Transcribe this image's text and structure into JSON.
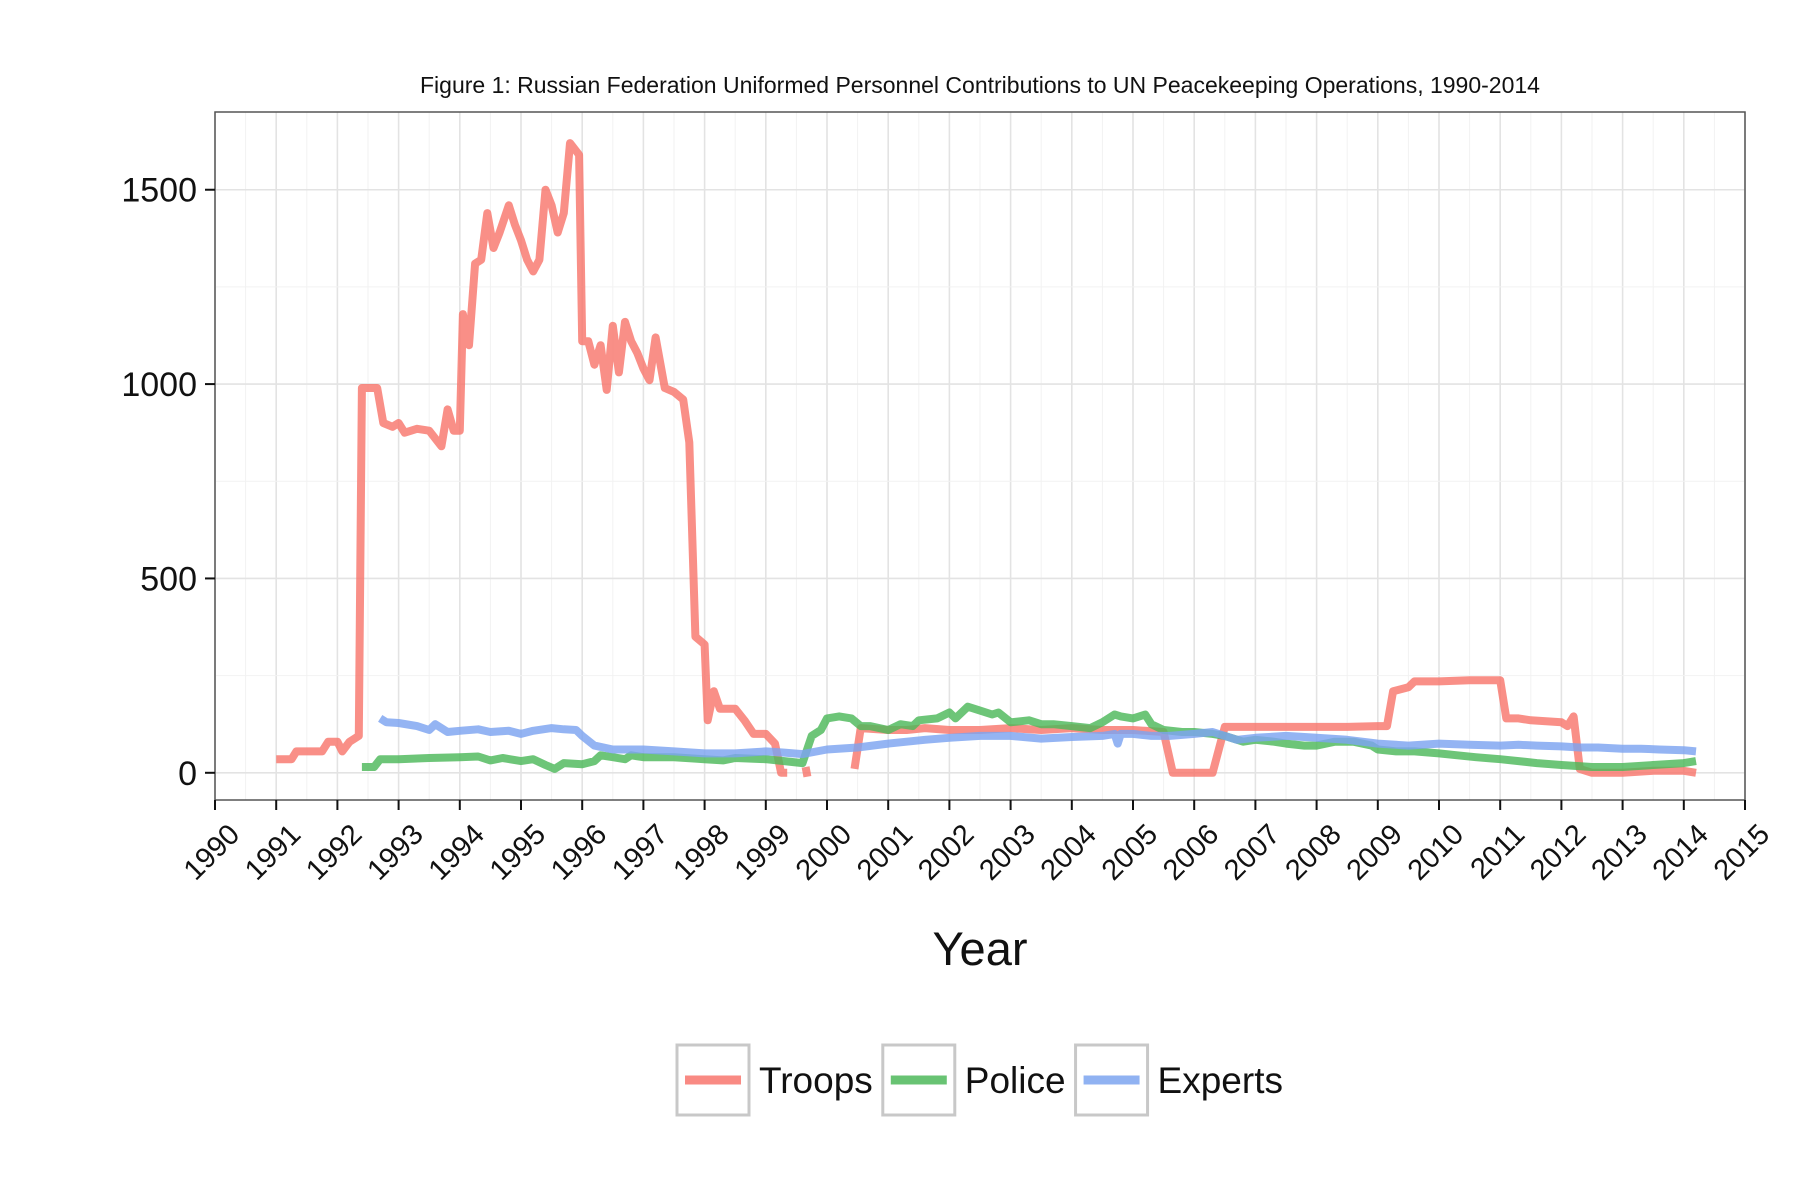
{
  "chart_data": {
    "type": "line",
    "title": "Figure 1: Russian Federation Uniformed Personnel Contributions to UN Peacekeeping Operations, 1990-2014",
    "xlabel": "Year",
    "ylabel": "",
    "xlim": [
      1990,
      2015
    ],
    "ylim": [
      -70,
      1700
    ],
    "x_ticks": [
      "1990",
      "1991",
      "1992",
      "1993",
      "1994",
      "1995",
      "1996",
      "1997",
      "1998",
      "1999",
      "2000",
      "2001",
      "2002",
      "2003",
      "2004",
      "2005",
      "2006",
      "2007",
      "2008",
      "2009",
      "2010",
      "2011",
      "2012",
      "2013",
      "2014",
      "2015"
    ],
    "y_ticks": [
      0,
      500,
      1000,
      1500
    ],
    "grid": true,
    "legend_position": "bottom",
    "series": [
      {
        "name": "Troops",
        "color": "#F8766D",
        "segments": [
          [
            [
              1991.0,
              35
            ],
            [
              1991.25,
              35
            ],
            [
              1991.33,
              55
            ],
            [
              1991.75,
              55
            ],
            [
              1991.85,
              80
            ],
            [
              1992.0,
              80
            ],
            [
              1992.08,
              55
            ],
            [
              1992.2,
              80
            ],
            [
              1992.35,
              95
            ],
            [
              1992.4,
              990
            ],
            [
              1992.65,
              990
            ],
            [
              1992.75,
              900
            ],
            [
              1992.9,
              890
            ],
            [
              1993.0,
              900
            ],
            [
              1993.1,
              875
            ],
            [
              1993.3,
              885
            ],
            [
              1993.5,
              880
            ],
            [
              1993.7,
              840
            ],
            [
              1993.8,
              935
            ],
            [
              1993.9,
              880
            ],
            [
              1994.0,
              880
            ],
            [
              1994.05,
              1180
            ],
            [
              1994.15,
              1100
            ],
            [
              1994.25,
              1310
            ],
            [
              1994.35,
              1320
            ],
            [
              1994.45,
              1440
            ],
            [
              1994.55,
              1350
            ],
            [
              1994.65,
              1390
            ],
            [
              1994.8,
              1460
            ],
            [
              1994.9,
              1410
            ],
            [
              1995.0,
              1370
            ],
            [
              1995.1,
              1320
            ],
            [
              1995.2,
              1290
            ],
            [
              1995.3,
              1320
            ],
            [
              1995.4,
              1500
            ],
            [
              1995.5,
              1460
            ],
            [
              1995.6,
              1390
            ],
            [
              1995.7,
              1440
            ],
            [
              1995.8,
              1620
            ],
            [
              1995.95,
              1590
            ],
            [
              1996.0,
              1110
            ],
            [
              1996.1,
              1110
            ],
            [
              1996.2,
              1050
            ],
            [
              1996.3,
              1100
            ],
            [
              1996.4,
              985
            ],
            [
              1996.5,
              1150
            ],
            [
              1996.6,
              1030
            ],
            [
              1996.7,
              1160
            ],
            [
              1996.8,
              1110
            ],
            [
              1996.9,
              1080
            ],
            [
              1997.0,
              1040
            ],
            [
              1997.1,
              1010
            ],
            [
              1997.2,
              1120
            ],
            [
              1997.35,
              990
            ],
            [
              1997.5,
              980
            ],
            [
              1997.65,
              960
            ],
            [
              1997.75,
              850
            ],
            [
              1997.85,
              350
            ],
            [
              1998.0,
              330
            ],
            [
              1998.05,
              135
            ],
            [
              1998.15,
              210
            ],
            [
              1998.25,
              165
            ],
            [
              1998.5,
              165
            ],
            [
              1998.65,
              135
            ],
            [
              1998.8,
              100
            ],
            [
              1999.0,
              100
            ],
            [
              1999.15,
              75
            ],
            [
              1999.25,
              0
            ],
            [
              1999.35,
              0
            ]
          ],
          [
            [
              1999.65,
              15
            ],
            [
              1999.68,
              -10
            ]
          ],
          [
            [
              2000.45,
              10
            ],
            [
              2000.55,
              115
            ],
            [
              2001.0,
              110
            ],
            [
              2001.3,
              110
            ],
            [
              2001.6,
              115
            ],
            [
              2002.0,
              110
            ],
            [
              2002.5,
              110
            ],
            [
              2003.0,
              115
            ],
            [
              2003.5,
              110
            ],
            [
              2004.0,
              115
            ],
            [
              2004.5,
              110
            ],
            [
              2005.0,
              110
            ],
            [
              2005.5,
              105
            ],
            [
              2005.65,
              0
            ],
            [
              2006.0,
              0
            ],
            [
              2006.3,
              0
            ],
            [
              2006.5,
              118
            ],
            [
              2007.0,
              118
            ],
            [
              2007.5,
              118
            ],
            [
              2008.0,
              118
            ],
            [
              2008.5,
              118
            ],
            [
              2009.0,
              120
            ],
            [
              2009.15,
              120
            ],
            [
              2009.25,
              210
            ],
            [
              2009.5,
              220
            ],
            [
              2009.6,
              235
            ],
            [
              2010.0,
              235
            ],
            [
              2010.5,
              238
            ],
            [
              2011.0,
              238
            ],
            [
              2011.1,
              140
            ],
            [
              2011.3,
              140
            ],
            [
              2011.5,
              135
            ],
            [
              2012.0,
              130
            ],
            [
              2012.1,
              120
            ],
            [
              2012.2,
              145
            ],
            [
              2012.3,
              10
            ],
            [
              2012.5,
              0
            ],
            [
              2013.0,
              0
            ],
            [
              2013.5,
              5
            ],
            [
              2014.0,
              5
            ],
            [
              2014.2,
              0
            ]
          ]
        ]
      },
      {
        "name": "Police",
        "color": "#4DB85A",
        "segments": [
          [
            [
              1992.4,
              15
            ],
            [
              1992.6,
              15
            ],
            [
              1992.7,
              35
            ],
            [
              1993.0,
              35
            ],
            [
              1993.5,
              38
            ],
            [
              1994.0,
              40
            ],
            [
              1994.3,
              42
            ],
            [
              1994.5,
              32
            ],
            [
              1994.7,
              38
            ],
            [
              1995.0,
              30
            ],
            [
              1995.2,
              35
            ],
            [
              1995.4,
              20
            ],
            [
              1995.55,
              10
            ],
            [
              1995.7,
              25
            ],
            [
              1996.0,
              22
            ],
            [
              1996.2,
              30
            ],
            [
              1996.3,
              45
            ],
            [
              1996.5,
              40
            ],
            [
              1996.7,
              35
            ],
            [
              1996.8,
              45
            ],
            [
              1997.0,
              40
            ],
            [
              1997.5,
              40
            ],
            [
              1998.0,
              35
            ],
            [
              1998.3,
              32
            ],
            [
              1998.5,
              38
            ],
            [
              1999.0,
              35
            ],
            [
              1999.3,
              30
            ],
            [
              1999.6,
              25
            ],
            [
              1999.75,
              95
            ],
            [
              1999.9,
              110
            ],
            [
              2000.0,
              140
            ],
            [
              2000.2,
              145
            ],
            [
              2000.4,
              140
            ],
            [
              2000.55,
              120
            ],
            [
              2000.7,
              120
            ],
            [
              2001.0,
              110
            ],
            [
              2001.2,
              125
            ],
            [
              2001.4,
              120
            ],
            [
              2001.5,
              135
            ],
            [
              2001.8,
              140
            ],
            [
              2002.0,
              155
            ],
            [
              2002.1,
              140
            ],
            [
              2002.3,
              170
            ],
            [
              2002.5,
              160
            ],
            [
              2002.7,
              150
            ],
            [
              2002.8,
              155
            ],
            [
              2003.0,
              130
            ],
            [
              2003.3,
              135
            ],
            [
              2003.5,
              125
            ],
            [
              2003.7,
              125
            ],
            [
              2004.0,
              120
            ],
            [
              2004.3,
              115
            ],
            [
              2004.5,
              130
            ],
            [
              2004.7,
              150
            ],
            [
              2004.8,
              145
            ],
            [
              2005.0,
              140
            ],
            [
              2005.2,
              150
            ],
            [
              2005.3,
              125
            ],
            [
              2005.5,
              110
            ],
            [
              2005.8,
              105
            ],
            [
              2006.0,
              105
            ],
            [
              2006.3,
              100
            ],
            [
              2006.5,
              95
            ],
            [
              2006.8,
              80
            ],
            [
              2007.0,
              85
            ],
            [
              2007.3,
              80
            ],
            [
              2007.5,
              75
            ],
            [
              2007.8,
              70
            ],
            [
              2008.0,
              70
            ],
            [
              2008.3,
              80
            ],
            [
              2008.6,
              80
            ],
            [
              2008.9,
              70
            ],
            [
              2009.0,
              60
            ],
            [
              2009.3,
              55
            ],
            [
              2009.6,
              55
            ],
            [
              2010.0,
              50
            ],
            [
              2010.3,
              45
            ],
            [
              2010.6,
              40
            ],
            [
              2011.0,
              35
            ],
            [
              2011.3,
              30
            ],
            [
              2011.6,
              25
            ],
            [
              2012.0,
              20
            ],
            [
              2012.5,
              15
            ],
            [
              2013.0,
              15
            ],
            [
              2013.5,
              20
            ],
            [
              2014.0,
              25
            ],
            [
              2014.2,
              30
            ]
          ]
        ]
      },
      {
        "name": "Experts",
        "color": "#7CA4F0",
        "segments": [
          [
            [
              1992.7,
              140
            ],
            [
              1992.8,
              130
            ],
            [
              1993.0,
              128
            ],
            [
              1993.3,
              120
            ],
            [
              1993.5,
              110
            ],
            [
              1993.6,
              125
            ],
            [
              1993.8,
              105
            ],
            [
              1994.0,
              108
            ],
            [
              1994.3,
              112
            ],
            [
              1994.5,
              105
            ],
            [
              1994.8,
              108
            ],
            [
              1995.0,
              100
            ],
            [
              1995.2,
              108
            ],
            [
              1995.5,
              115
            ],
            [
              1995.7,
              112
            ],
            [
              1995.9,
              110
            ],
            [
              1996.0,
              95
            ],
            [
              1996.2,
              70
            ],
            [
              1996.5,
              60
            ],
            [
              1997.0,
              60
            ],
            [
              1997.5,
              55
            ],
            [
              1998.0,
              50
            ],
            [
              1998.5,
              50
            ],
            [
              1999.0,
              55
            ],
            [
              1999.3,
              52
            ],
            [
              1999.6,
              48
            ],
            [
              2000.0,
              60
            ],
            [
              2000.5,
              65
            ],
            [
              2001.0,
              75
            ],
            [
              2001.3,
              80
            ],
            [
              2001.6,
              85
            ],
            [
              2002.0,
              90
            ],
            [
              2002.5,
              95
            ],
            [
              2003.0,
              95
            ],
            [
              2003.5,
              88
            ],
            [
              2004.0,
              92
            ],
            [
              2004.5,
              95
            ],
            [
              2004.7,
              100
            ],
            [
              2004.75,
              75
            ],
            [
              2004.8,
              100
            ],
            [
              2005.0,
              100
            ],
            [
              2005.3,
              95
            ],
            [
              2005.6,
              95
            ],
            [
              2006.0,
              100
            ],
            [
              2006.3,
              105
            ],
            [
              2006.7,
              85
            ],
            [
              2007.0,
              90
            ],
            [
              2007.5,
              95
            ],
            [
              2008.0,
              90
            ],
            [
              2008.5,
              85
            ],
            [
              2009.0,
              75
            ],
            [
              2009.5,
              70
            ],
            [
              2010.0,
              75
            ],
            [
              2010.5,
              72
            ],
            [
              2011.0,
              70
            ],
            [
              2011.3,
              72
            ],
            [
              2011.6,
              70
            ],
            [
              2012.0,
              68
            ],
            [
              2012.3,
              65
            ],
            [
              2012.6,
              65
            ],
            [
              2013.0,
              62
            ],
            [
              2013.3,
              62
            ],
            [
              2013.6,
              60
            ],
            [
              2014.0,
              58
            ],
            [
              2014.2,
              55
            ]
          ]
        ]
      }
    ]
  }
}
